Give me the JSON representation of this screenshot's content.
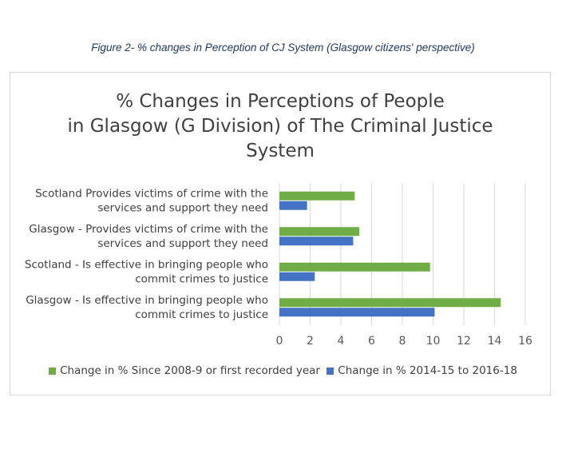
{
  "caption": "Figure 2- % changes in Perception of CJ System (Glasgow citizens' perspective)",
  "colors": {
    "series1": "#70ad47",
    "series2": "#4472c4",
    "grid": "#d9d9d9"
  },
  "chart_data": {
    "type": "bar",
    "orientation": "horizontal",
    "title_lines": [
      "% Changes in Perceptions of People",
      "in Glasgow (G Division) of The Criminal Justice",
      "System"
    ],
    "categories": [
      [
        "Scotland Provides victims of crime with the",
        "services and support they need"
      ],
      [
        "Glasgow - Provides victims of crime with the",
        "services and support they need"
      ],
      [
        "Scotland - Is effective in bringing people who",
        "commit crimes to justice"
      ],
      [
        "Glasgow - Is effective in bringing people who",
        "commit crimes to justice"
      ]
    ],
    "series": [
      {
        "name": "Change in % Since 2008-9 or first recorded year",
        "values": [
          4.9,
          5.2,
          9.8,
          14.4
        ]
      },
      {
        "name": "Change in % 2014-15 to 2016-18",
        "values": [
          1.8,
          4.8,
          2.3,
          10.1
        ]
      }
    ],
    "xlim": [
      0,
      16
    ],
    "xticks": [
      0,
      2,
      4,
      6,
      8,
      10,
      12,
      14,
      16
    ],
    "grid": true,
    "legend_position": "bottom"
  }
}
